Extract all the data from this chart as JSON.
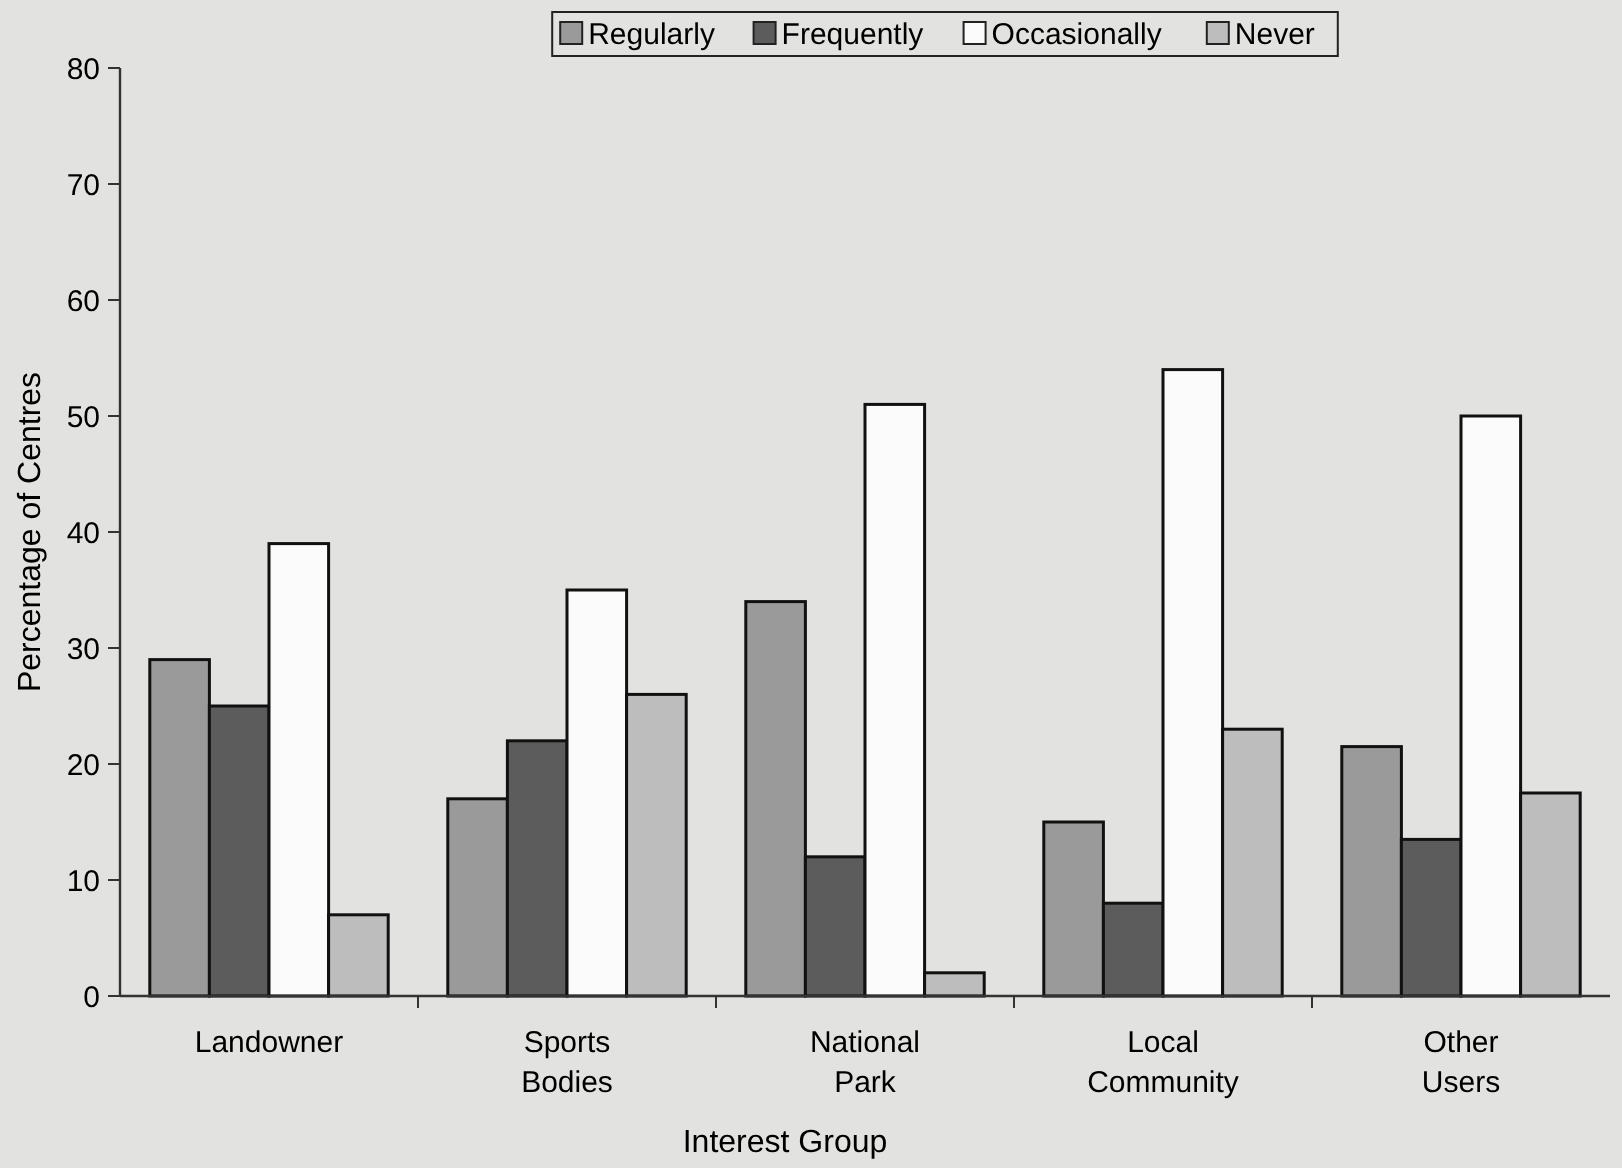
{
  "chart_data": {
    "type": "bar",
    "xlabel": "Interest Group",
    "ylabel": "Percentage of Centres",
    "categories": [
      "Landowner",
      "Sports\nBodies",
      "National\nPark",
      "Local\nCommunity",
      "Other\nUsers"
    ],
    "series": [
      {
        "name": "Regularly",
        "color": "#9a9a9a",
        "values": [
          29,
          17,
          34,
          15,
          21.5
        ]
      },
      {
        "name": "Frequently",
        "color": "#5c5c5c",
        "values": [
          25,
          22,
          12,
          8,
          13.5
        ]
      },
      {
        "name": "Occasionally",
        "color": "#fbfbfb",
        "values": [
          39,
          35,
          51,
          54,
          50
        ]
      },
      {
        "name": "Never",
        "color": "#bdbdbd",
        "values": [
          7,
          26,
          2,
          23,
          17.5
        ]
      }
    ],
    "ylim": [
      0,
      80
    ],
    "yticks": [
      0,
      10,
      20,
      30,
      40,
      50,
      60,
      70,
      80
    ],
    "legend": "top",
    "grid": false
  }
}
